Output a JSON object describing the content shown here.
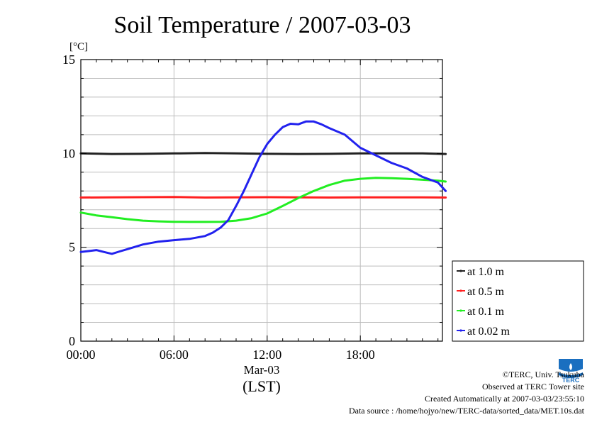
{
  "chart_data": {
    "type": "line",
    "title": "Soil Temperature / 2007-03-03",
    "yunit": "[°C]",
    "ylim": [
      0,
      15
    ],
    "yticks": [
      0,
      5,
      10,
      15
    ],
    "xlim": [
      0,
      23.5
    ],
    "xticks": [
      {
        "x": 0,
        "label": "00:00"
      },
      {
        "x": 6,
        "label": "06:00"
      },
      {
        "x": 12,
        "label": "12:00"
      },
      {
        "x": 18,
        "label": "18:00"
      }
    ],
    "date_label": "Mar-03",
    "xlabel": "(LST)",
    "grid": true,
    "legend_position": "bottom-right outside",
    "series": [
      {
        "name": "at 1.0 m",
        "color": "#222222",
        "x": [
          0,
          2,
          4,
          6,
          8,
          10,
          12,
          14,
          16,
          18,
          20,
          22,
          23.5
        ],
        "y": [
          10.0,
          9.97,
          9.98,
          10.0,
          10.02,
          10.0,
          9.98,
          9.97,
          9.98,
          10.0,
          10.0,
          10.0,
          9.97
        ]
      },
      {
        "name": "at 0.5 m",
        "color": "#ff2020",
        "x": [
          0,
          2,
          4,
          6,
          8,
          10,
          12,
          14,
          16,
          18,
          20,
          22,
          23.5
        ],
        "y": [
          7.65,
          7.66,
          7.67,
          7.68,
          7.65,
          7.66,
          7.67,
          7.66,
          7.65,
          7.66,
          7.66,
          7.66,
          7.65
        ]
      },
      {
        "name": "at 0.1 m",
        "color": "#22ee22",
        "x": [
          0,
          1,
          2,
          3,
          4,
          5,
          6,
          7,
          8,
          9,
          10,
          11,
          12,
          13,
          14,
          15,
          16,
          17,
          18,
          19,
          20,
          21,
          22,
          23,
          23.5
        ],
        "y": [
          6.85,
          6.7,
          6.6,
          6.5,
          6.42,
          6.38,
          6.36,
          6.35,
          6.35,
          6.36,
          6.42,
          6.55,
          6.8,
          7.2,
          7.62,
          8.0,
          8.32,
          8.55,
          8.65,
          8.7,
          8.68,
          8.65,
          8.6,
          8.55,
          8.5
        ]
      },
      {
        "name": "at 0.02 m",
        "color": "#2222ee",
        "x": [
          0,
          0.5,
          1,
          1.5,
          2,
          2.5,
          3,
          4,
          5,
          6,
          7,
          8,
          8.5,
          9,
          9.5,
          10,
          10.5,
          11,
          11.5,
          12,
          12.5,
          13,
          13.5,
          14,
          14.5,
          15,
          15.5,
          16,
          17,
          18,
          19,
          20,
          21,
          22,
          23,
          23.5
        ],
        "y": [
          4.75,
          4.8,
          4.85,
          4.75,
          4.65,
          4.78,
          4.9,
          5.15,
          5.3,
          5.38,
          5.45,
          5.6,
          5.78,
          6.05,
          6.45,
          7.2,
          8.0,
          8.9,
          9.8,
          10.5,
          11.0,
          11.4,
          11.58,
          11.55,
          11.7,
          11.7,
          11.55,
          11.35,
          11.0,
          10.3,
          9.9,
          9.5,
          9.2,
          8.75,
          8.45,
          8.0
        ]
      }
    ]
  },
  "footer": {
    "copyright": "©TERC, Univ. Tsukuba",
    "observed": "Observed at TERC Tower site",
    "created": "Created Automatically at 2007-03-03/23:55:10",
    "source": "Data source : /home/hojyo/new/TERC-data/sorted_data/MET.10s.dat"
  },
  "logo": {
    "label": "TERC",
    "color": "#1a6fc0"
  }
}
